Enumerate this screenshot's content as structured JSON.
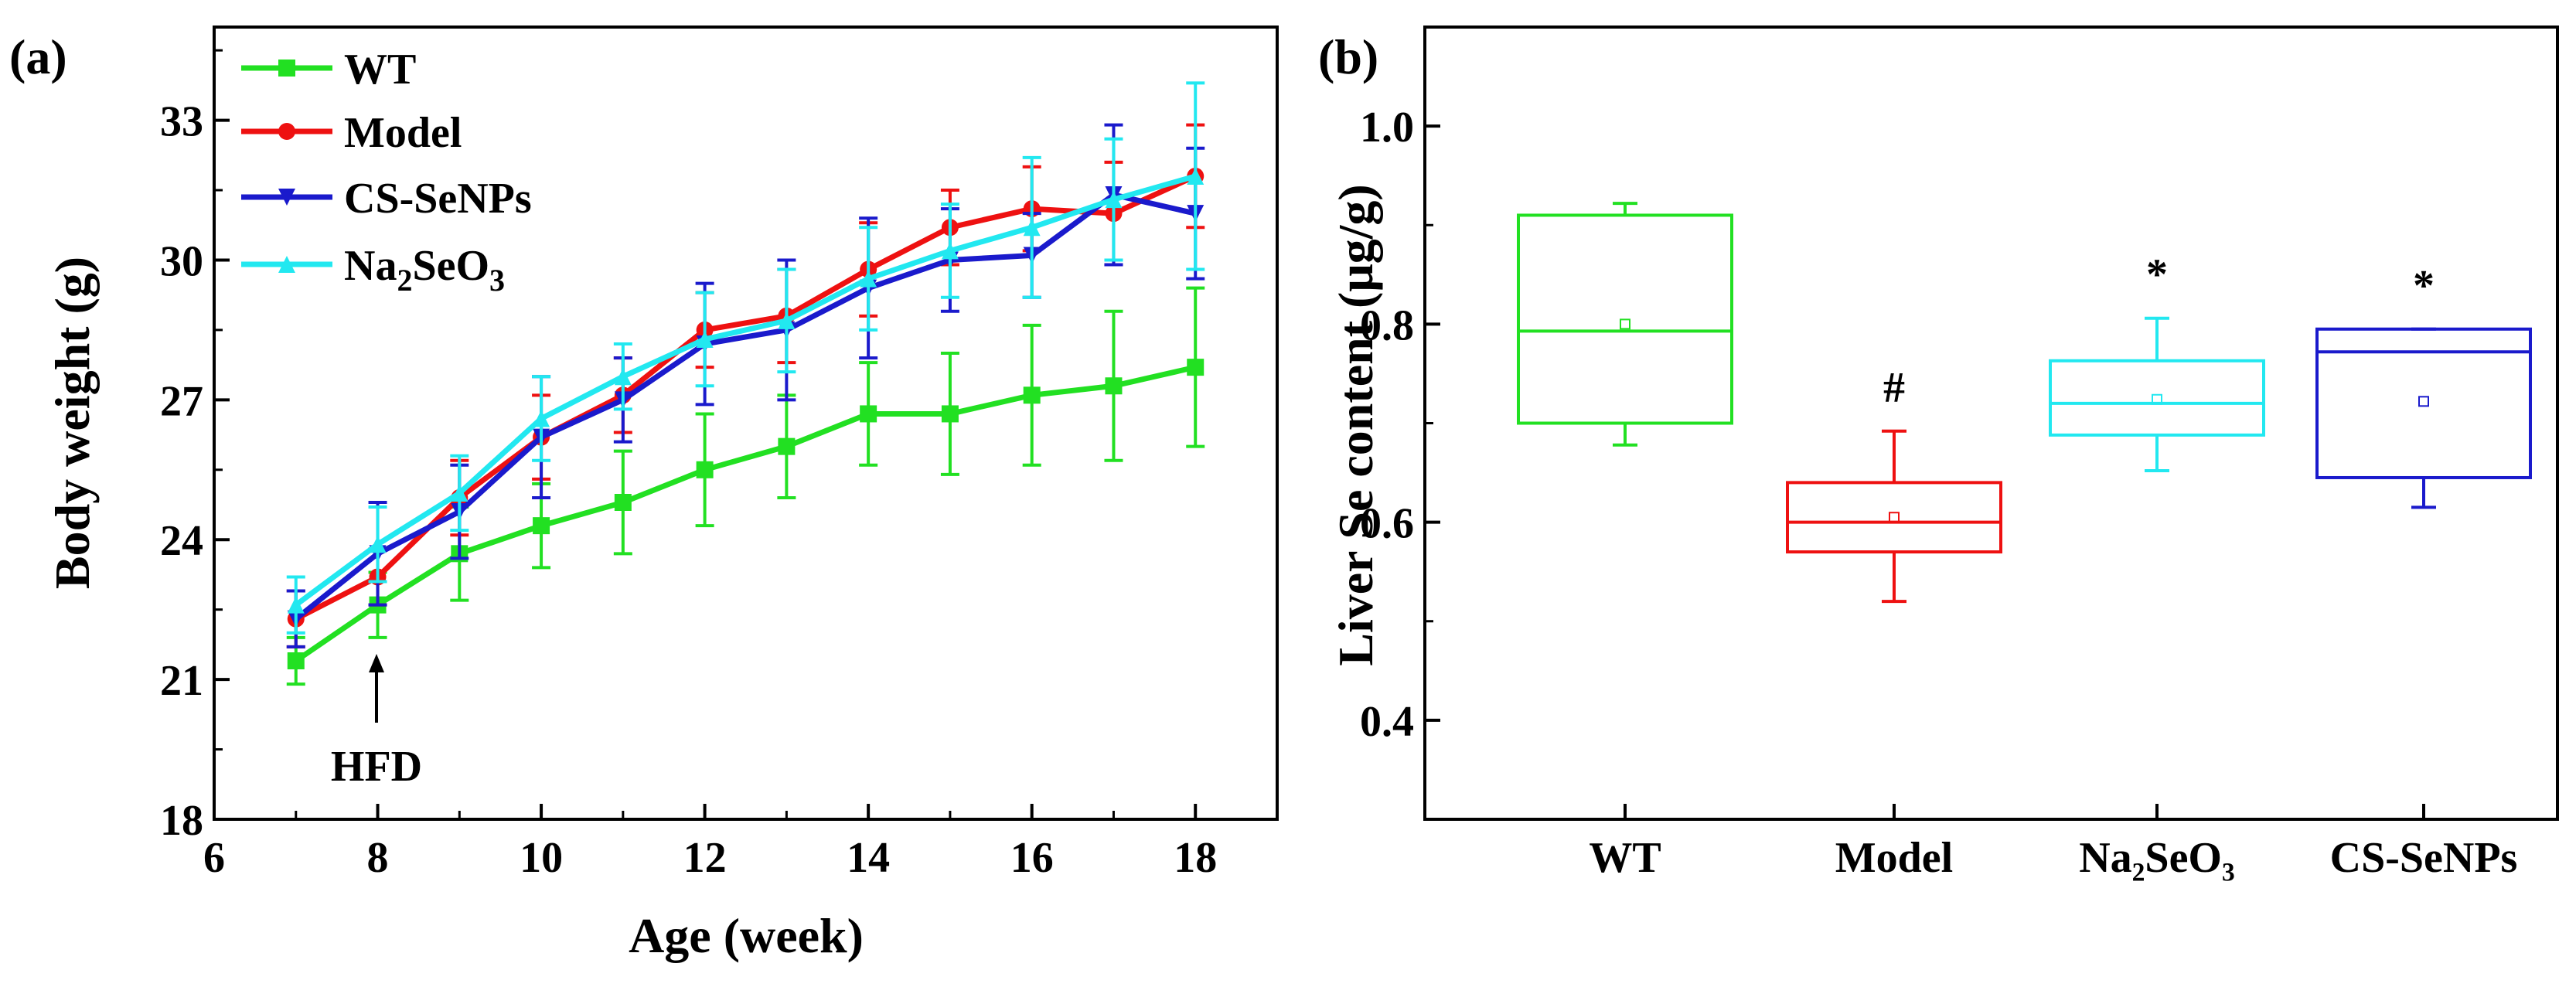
{
  "panels": {
    "a": "(a)",
    "b": "(b)"
  },
  "chart_data": [
    {
      "type": "line",
      "panel": "(a)",
      "xlabel": "Age (week)",
      "ylabel": "Body weight (g)",
      "xlim": [
        6,
        19
      ],
      "ylim": [
        18,
        35
      ],
      "xticks": [
        6,
        8,
        10,
        12,
        14,
        16,
        18
      ],
      "yticks": [
        18,
        21,
        24,
        27,
        30,
        33
      ],
      "legend_position": "top-left",
      "annotation": {
        "text": "HFD",
        "x": 8
      },
      "x": [
        7,
        8,
        9,
        10,
        11,
        12,
        13,
        14,
        15,
        16,
        17,
        18
      ],
      "series": [
        {
          "name": "WT",
          "sub": "",
          "tail": "",
          "color": "#22e022",
          "marker": "square",
          "values": [
            21.4,
            22.6,
            23.7,
            24.3,
            24.8,
            25.5,
            26.0,
            26.7,
            26.7,
            27.1,
            27.3,
            27.7
          ],
          "errors": [
            0.5,
            0.7,
            1.0,
            0.9,
            1.1,
            1.2,
            1.1,
            1.1,
            1.3,
            1.5,
            1.6,
            1.7
          ]
        },
        {
          "name": "Model",
          "sub": "",
          "tail": "",
          "color": "#ee1111",
          "marker": "circle",
          "values": [
            22.3,
            23.2,
            24.9,
            26.2,
            27.1,
            28.5,
            28.8,
            29.8,
            30.7,
            31.1,
            31.0,
            31.8
          ],
          "errors": [
            0.6,
            0.6,
            0.8,
            0.9,
            0.8,
            0.8,
            1.0,
            1.0,
            0.8,
            0.9,
            1.1,
            1.1
          ]
        },
        {
          "name": "CS-SeNPs",
          "sub": "",
          "tail": "",
          "color": "#1a1acc",
          "marker": "triangle-down",
          "values": [
            22.3,
            23.7,
            24.6,
            26.2,
            27.0,
            28.2,
            28.5,
            29.4,
            30.0,
            30.1,
            31.4,
            31.0
          ],
          "errors": [
            0.6,
            1.1,
            1.0,
            1.3,
            0.9,
            1.3,
            1.5,
            1.5,
            1.1,
            0.9,
            1.5,
            1.4
          ]
        },
        {
          "name": "Na",
          "sub": "2",
          "tail": "SeO",
          "sub2": "3",
          "color": "#22e8f0",
          "marker": "triangle-up",
          "values": [
            22.6,
            23.9,
            25.0,
            26.6,
            27.5,
            28.3,
            28.7,
            29.6,
            30.2,
            30.7,
            31.3,
            31.8
          ],
          "errors": [
            0.6,
            0.8,
            0.8,
            0.9,
            0.7,
            1.0,
            1.1,
            1.1,
            1.0,
            1.5,
            1.3,
            2.0
          ]
        }
      ]
    },
    {
      "type": "box",
      "panel": "(b)",
      "xlabel": "",
      "ylabel": "Liver Se content (μg/g)",
      "ylim": [
        0.3,
        1.1
      ],
      "yticks": [
        0.4,
        0.6,
        0.8,
        1.0
      ],
      "categories": [
        "WT",
        "Model",
        "Na₂SeO₃",
        "CS-SeNPs"
      ],
      "boxes": [
        {
          "name": "WT",
          "color": "#22e022",
          "min": 0.678,
          "q1": 0.7,
          "median": 0.793,
          "q3": 0.91,
          "max": 0.922,
          "mean": 0.8,
          "mark": ""
        },
        {
          "name": "Model",
          "color": "#ee1111",
          "min": 0.52,
          "q1": 0.57,
          "median": 0.6,
          "q3": 0.64,
          "max": 0.692,
          "mean": 0.605,
          "mark": "#"
        },
        {
          "name": "Na₂SeO₃",
          "color": "#22e8f0",
          "min": 0.652,
          "q1": 0.688,
          "median": 0.72,
          "q3": 0.763,
          "max": 0.806,
          "mean": 0.724,
          "mark": "*"
        },
        {
          "name": "CS-SeNPs",
          "color": "#1a1acc",
          "min": 0.615,
          "q1": 0.645,
          "median": 0.772,
          "q3": 0.795,
          "max": 0.795,
          "mean": 0.722,
          "mark": "*"
        }
      ]
    }
  ]
}
